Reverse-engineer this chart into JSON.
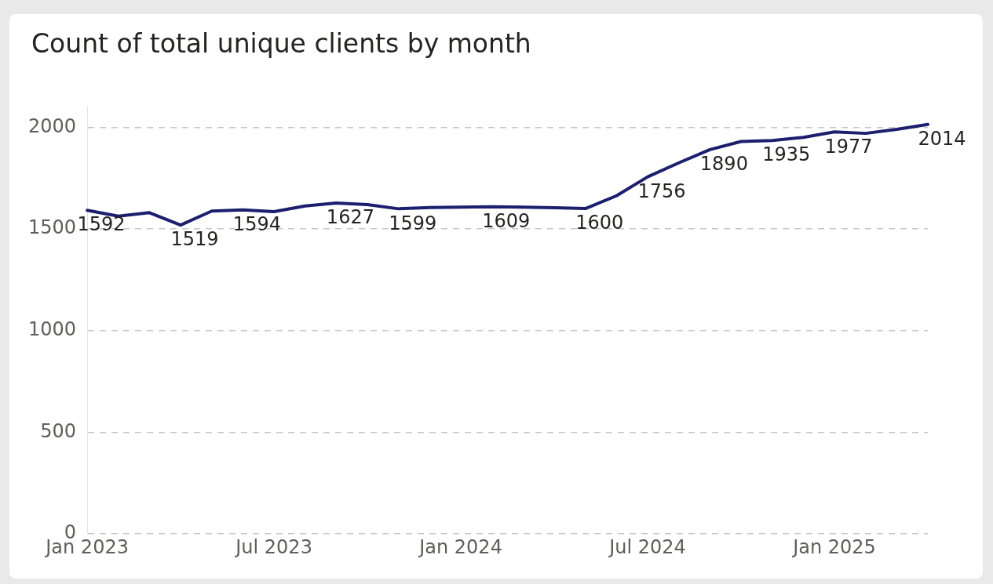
{
  "chart_data": {
    "type": "line",
    "title": "Count of total unique clients by month",
    "categories": [
      "Jan 2023",
      null,
      null,
      null,
      null,
      null,
      "Jul 2023",
      null,
      null,
      null,
      null,
      null,
      "Jan 2024",
      null,
      null,
      null,
      null,
      null,
      "Jul 2024",
      null,
      null,
      null,
      null,
      null,
      "Jan 2025",
      null,
      null,
      null
    ],
    "series": [
      {
        "color": "#1b1f6e",
        "values": [
          1592,
          1563,
          1580,
          1519,
          1588,
          1594,
          1585,
          1613,
          1627,
          1620,
          1599,
          1605,
          1607,
          1609,
          1607,
          1604,
          1600,
          1663,
          1756,
          1825,
          1890,
          1930,
          1935,
          1950,
          1977,
          1970,
          1990,
          2014
        ],
        "value_labels": [
          "1592",
          null,
          null,
          "1519",
          null,
          "1594",
          null,
          null,
          "1627",
          null,
          "1599",
          null,
          null,
          "1609",
          null,
          null,
          "1600",
          null,
          "1756",
          null,
          "1890",
          null,
          "1935",
          null,
          "1977",
          null,
          null,
          "2014"
        ]
      }
    ],
    "ylim": [
      0,
      2100
    ],
    "yticks": [
      0,
      500,
      1000,
      1500,
      2000
    ],
    "grid": "y",
    "legend": false,
    "marker": "none",
    "line_style": "solid"
  }
}
